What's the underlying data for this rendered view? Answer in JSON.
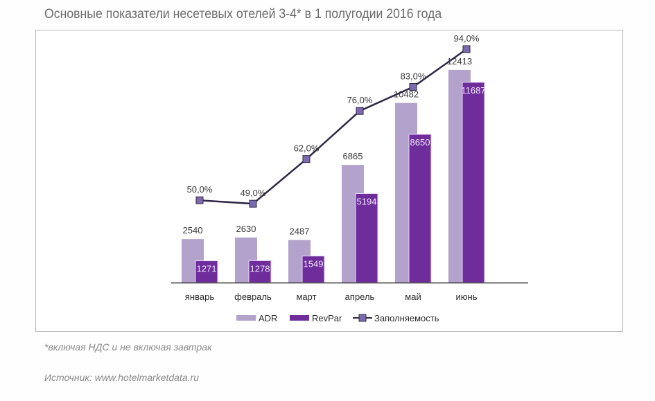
{
  "colors": {
    "adr": "#b3a2cc",
    "revpar": "#6e2d9b",
    "occupancy_line": "#2f2745",
    "occupancy_marker": "#7d6bb0",
    "axis": "#333333",
    "label_dark": "#3a3a3a",
    "label_light": "#f3e9ff"
  },
  "chart_data": {
    "type": "bar",
    "title": "Основные показатели несетевых отелей 3-4* в 1 полугодии 2016 года",
    "categories": [
      "январь",
      "февраль",
      "март",
      "апрель",
      "май",
      "июнь"
    ],
    "series": [
      {
        "name": "ADR",
        "kind": "bar",
        "values": [
          2540,
          2630,
          2487,
          6865,
          10482,
          12413
        ],
        "labels": [
          "2540",
          "2630",
          "2487",
          "6865",
          "10482",
          "12413"
        ]
      },
      {
        "name": "RevPar",
        "kind": "bar",
        "values": [
          1271,
          1278,
          1549,
          5194,
          8650,
          11687
        ],
        "labels": [
          "1271",
          "1278",
          "1549",
          "5194",
          "8650",
          "11687"
        ]
      },
      {
        "name": "Заполняемость",
        "kind": "line",
        "values": [
          50,
          49,
          62,
          76,
          83,
          94
        ],
        "labels": [
          "50,0%",
          "49,0%",
          "62,0%",
          "76,0%",
          "83,0%",
          "94,0%"
        ],
        "unit": "%"
      }
    ],
    "xlabel": "",
    "ylabel": "",
    "ylim": [
      0,
      13500
    ],
    "ylim_secondary": [
      0,
      100
    ],
    "grid": false,
    "legend": "bottom"
  },
  "footnotes": {
    "note": "*включая НДС и не включая завтрак",
    "source": "Источник: www.hotelmarketdata.ru"
  }
}
